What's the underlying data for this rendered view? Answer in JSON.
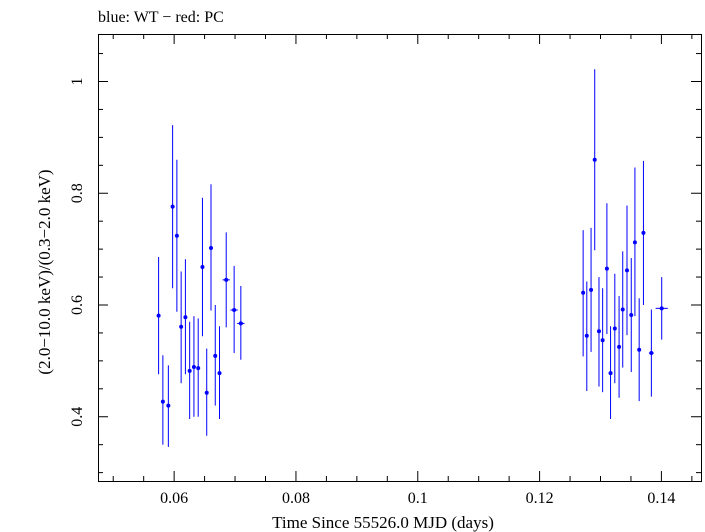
{
  "chart_data": {
    "type": "scatter",
    "title": "blue: WT − red: PC",
    "xlabel": "Time Since 55526.0 MJD (days)",
    "ylabel": "(2.0−10.0 keV)/(0.3−2.0 keV)",
    "xlim": [
      0.0475,
      0.1465
    ],
    "ylim": [
      0.285,
      1.085
    ],
    "x_ticks": [
      {
        "value": 0.06,
        "label": "0.06"
      },
      {
        "value": 0.08,
        "label": "0.08"
      },
      {
        "value": 0.1,
        "label": "0.1"
      },
      {
        "value": 0.12,
        "label": "0.12"
      },
      {
        "value": 0.14,
        "label": "0.14"
      }
    ],
    "y_ticks": [
      {
        "value": 0.4,
        "label": "0.4"
      },
      {
        "value": 0.6,
        "label": "0.6"
      },
      {
        "value": 0.8,
        "label": "0.8"
      },
      {
        "value": 1.0,
        "label": "1"
      }
    ],
    "series": [
      {
        "name": "WT",
        "color": "#0000ff",
        "points": [
          {
            "x": 0.05745,
            "y": 0.581,
            "xerr": 0.0002,
            "ylo": 0.476,
            "yhi": 0.686
          },
          {
            "x": 0.05815,
            "y": 0.427,
            "xerr": 0.0002,
            "ylo": 0.35,
            "yhi": 0.51
          },
          {
            "x": 0.05905,
            "y": 0.42,
            "xerr": 0.0002,
            "ylo": 0.346,
            "yhi": 0.492
          },
          {
            "x": 0.05975,
            "y": 0.776,
            "xerr": 0.0002,
            "ylo": 0.63,
            "yhi": 0.922
          },
          {
            "x": 0.06045,
            "y": 0.724,
            "xerr": 0.0002,
            "ylo": 0.588,
            "yhi": 0.86
          },
          {
            "x": 0.06115,
            "y": 0.561,
            "xerr": 0.0002,
            "ylo": 0.46,
            "yhi": 0.66
          },
          {
            "x": 0.06185,
            "y": 0.578,
            "xerr": 0.0002,
            "ylo": 0.476,
            "yhi": 0.682
          },
          {
            "x": 0.06255,
            "y": 0.482,
            "xerr": 0.0002,
            "ylo": 0.396,
            "yhi": 0.57
          },
          {
            "x": 0.06325,
            "y": 0.489,
            "xerr": 0.0002,
            "ylo": 0.4,
            "yhi": 0.58
          },
          {
            "x": 0.06395,
            "y": 0.487,
            "xerr": 0.0002,
            "ylo": 0.4,
            "yhi": 0.576
          },
          {
            "x": 0.06465,
            "y": 0.668,
            "xerr": 0.0002,
            "ylo": 0.544,
            "yhi": 0.792
          },
          {
            "x": 0.06535,
            "y": 0.443,
            "xerr": 0.0002,
            "ylo": 0.366,
            "yhi": 0.522
          },
          {
            "x": 0.06605,
            "y": 0.702,
            "xerr": 0.0002,
            "ylo": 0.59,
            "yhi": 0.816
          },
          {
            "x": 0.06675,
            "y": 0.509,
            "xerr": 0.0002,
            "ylo": 0.42,
            "yhi": 0.6
          },
          {
            "x": 0.06745,
            "y": 0.478,
            "xerr": 0.0002,
            "ylo": 0.396,
            "yhi": 0.562
          },
          {
            "x": 0.06855,
            "y": 0.645,
            "xerr": 0.0006,
            "ylo": 0.56,
            "yhi": 0.73
          },
          {
            "x": 0.06985,
            "y": 0.591,
            "xerr": 0.0006,
            "ylo": 0.514,
            "yhi": 0.67
          },
          {
            "x": 0.07095,
            "y": 0.567,
            "xerr": 0.0006,
            "ylo": 0.502,
            "yhi": 0.634
          },
          {
            "x": 0.12715,
            "y": 0.622,
            "xerr": 0.0002,
            "ylo": 0.508,
            "yhi": 0.734
          },
          {
            "x": 0.12775,
            "y": 0.545,
            "xerr": 0.0002,
            "ylo": 0.446,
            "yhi": 0.642
          },
          {
            "x": 0.12845,
            "y": 0.627,
            "xerr": 0.0002,
            "ylo": 0.516,
            "yhi": 0.738
          },
          {
            "x": 0.12905,
            "y": 0.86,
            "xerr": 0.0002,
            "ylo": 0.698,
            "yhi": 1.022
          },
          {
            "x": 0.12975,
            "y": 0.553,
            "xerr": 0.0002,
            "ylo": 0.454,
            "yhi": 0.65
          },
          {
            "x": 0.13035,
            "y": 0.537,
            "xerr": 0.0002,
            "ylo": 0.444,
            "yhi": 0.63
          },
          {
            "x": 0.13105,
            "y": 0.665,
            "xerr": 0.0002,
            "ylo": 0.548,
            "yhi": 0.782
          },
          {
            "x": 0.13165,
            "y": 0.478,
            "xerr": 0.0002,
            "ylo": 0.396,
            "yhi": 0.562
          },
          {
            "x": 0.13235,
            "y": 0.558,
            "xerr": 0.0002,
            "ylo": 0.46,
            "yhi": 0.656
          },
          {
            "x": 0.13305,
            "y": 0.525,
            "xerr": 0.0002,
            "ylo": 0.434,
            "yhi": 0.616
          },
          {
            "x": 0.13365,
            "y": 0.592,
            "xerr": 0.0002,
            "ylo": 0.488,
            "yhi": 0.696
          },
          {
            "x": 0.13435,
            "y": 0.662,
            "xerr": 0.0002,
            "ylo": 0.546,
            "yhi": 0.778
          },
          {
            "x": 0.13505,
            "y": 0.582,
            "xerr": 0.0002,
            "ylo": 0.48,
            "yhi": 0.684
          },
          {
            "x": 0.13565,
            "y": 0.712,
            "xerr": 0.0002,
            "ylo": 0.58,
            "yhi": 0.846
          },
          {
            "x": 0.13635,
            "y": 0.52,
            "xerr": 0.0002,
            "ylo": 0.428,
            "yhi": 0.612
          },
          {
            "x": 0.13705,
            "y": 0.729,
            "xerr": 0.0002,
            "ylo": 0.6,
            "yhi": 0.858
          },
          {
            "x": 0.13835,
            "y": 0.514,
            "xerr": 0.0004,
            "ylo": 0.436,
            "yhi": 0.592
          },
          {
            "x": 0.14005,
            "y": 0.594,
            "xerr": 0.001,
            "ylo": 0.538,
            "yhi": 0.65
          }
        ]
      }
    ]
  }
}
